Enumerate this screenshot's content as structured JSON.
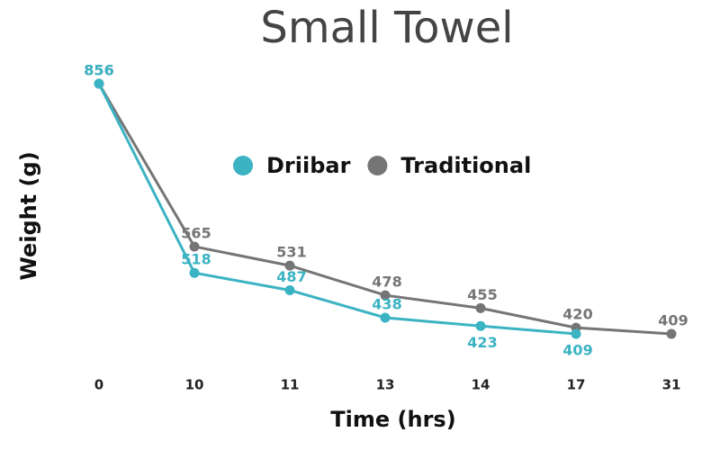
{
  "chart_data": {
    "type": "line",
    "title": "Small Towel",
    "x_label": "Time (hrs)",
    "y_label": "Weight (g)",
    "categories": [
      "0",
      "10",
      "11",
      "13",
      "14",
      "17",
      "31"
    ],
    "series": [
      {
        "name": "Driibar",
        "color": "#3bb3c3",
        "values": [
          856,
          518,
          487,
          438,
          423,
          409,
          null
        ]
      },
      {
        "name": "Traditional",
        "color": "#757575",
        "values": [
          856,
          565,
          531,
          478,
          455,
          420,
          409
        ]
      }
    ],
    "ylim": [
      300,
      900
    ],
    "legend": "top",
    "grid": false
  }
}
